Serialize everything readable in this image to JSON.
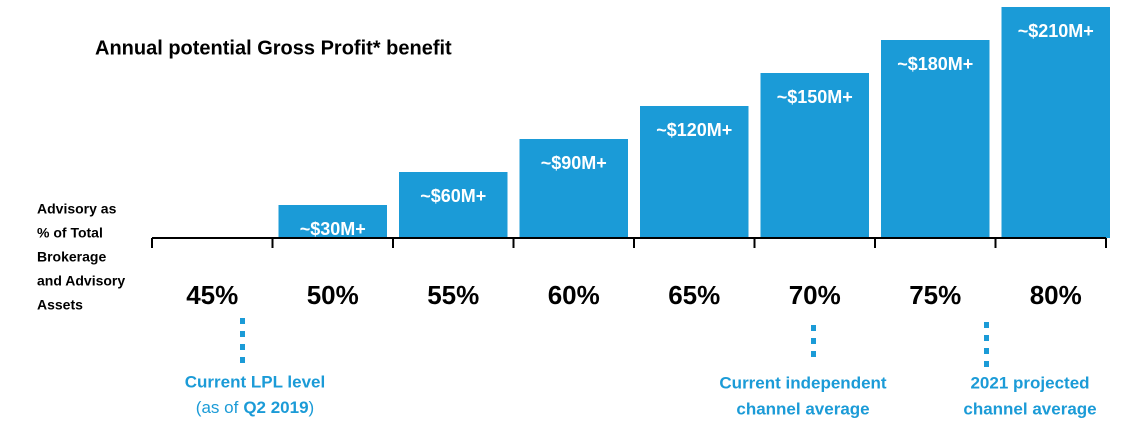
{
  "chart_data": {
    "type": "bar",
    "title": "Annual potential Gross Profit* benefit",
    "axis_label": [
      "Advisory as",
      "% of Total",
      "Brokerage",
      "and Advisory",
      "Assets"
    ],
    "categories": [
      "45%",
      "50%",
      "55%",
      "60%",
      "65%",
      "70%",
      "75%",
      "80%"
    ],
    "values": [
      null,
      30,
      60,
      90,
      120,
      150,
      180,
      210
    ],
    "value_labels": [
      null,
      "~$30M+",
      "~$60M+",
      "~$90M+",
      "~$120M+",
      "~$150M+",
      "~$180M+",
      "~$210M+"
    ],
    "color": "#1b9bd7",
    "annotations": [
      {
        "category": 0,
        "lines": [
          "Current LPL level"
        ],
        "note": [
          "(as of",
          "Q2 2019",
          ")"
        ]
      },
      {
        "category": 5,
        "lines": [
          "Current independent",
          "channel average"
        ]
      },
      {
        "category": 6,
        "lines": [
          "2021 projected",
          "channel average"
        ]
      }
    ]
  }
}
